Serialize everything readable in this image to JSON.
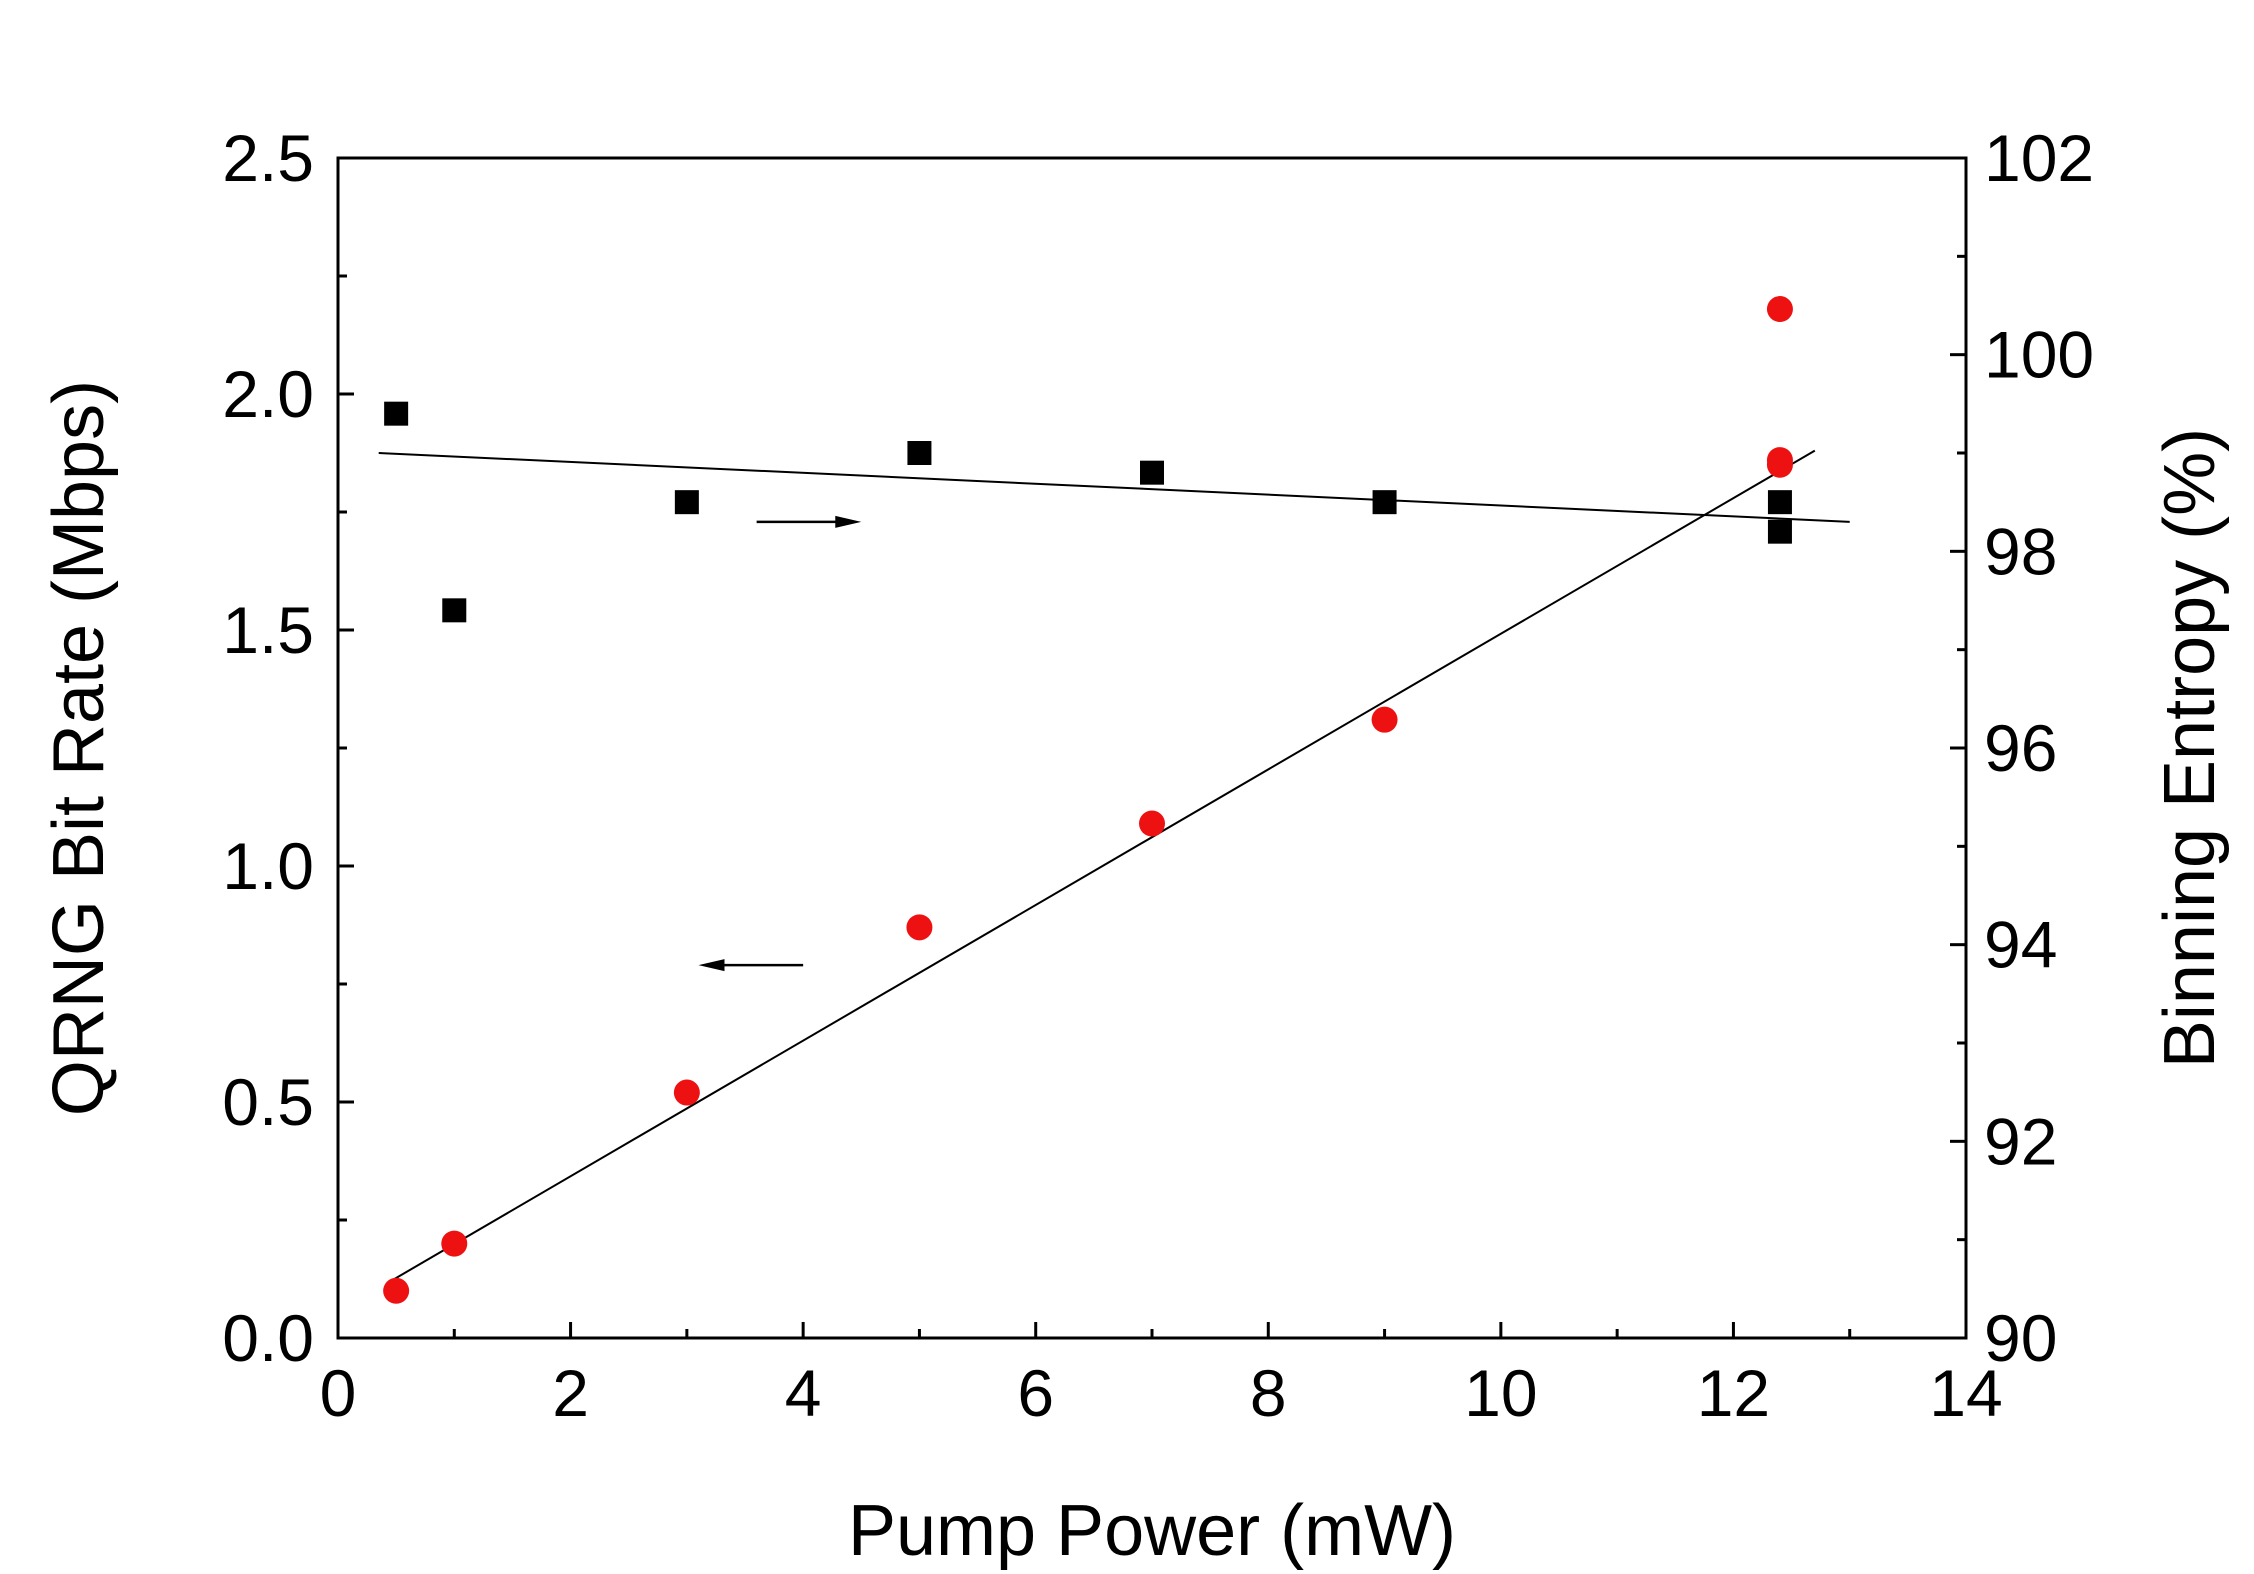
{
  "chart_data": {
    "type": "scatter",
    "title": "",
    "xlabel": "Pump Power (mW)",
    "ylabel": "QRNG Bit Rate (Mbps)",
    "y2label": "Binning Entropy (%)",
    "xlim": [
      0,
      14
    ],
    "ylim": [
      0,
      2.5
    ],
    "y2lim": [
      90,
      102
    ],
    "x_ticks": [
      "0",
      "2",
      "4",
      "6",
      "8",
      "10",
      "12",
      "14"
    ],
    "y_ticks": [
      "0.0",
      "0.5",
      "1.0",
      "1.5",
      "2.0",
      "2.5"
    ],
    "y2_ticks": [
      "90",
      "92",
      "94",
      "96",
      "98",
      "100",
      "102"
    ],
    "grid": false,
    "series": [
      {
        "name": "QRNG Bit Rate",
        "axis": "left",
        "marker": "circle",
        "color": "#ee1111",
        "x": [
          0.5,
          1,
          3,
          5,
          7,
          9,
          12.4,
          12.4,
          12.4
        ],
        "y": [
          0.1,
          0.2,
          0.52,
          0.87,
          1.09,
          1.31,
          2.18,
          1.86,
          1.85
        ]
      },
      {
        "name": "Binning Entropy",
        "axis": "right",
        "marker": "square",
        "color": "#000000",
        "x": [
          0.5,
          1,
          3,
          5,
          7,
          9,
          12.4,
          12.4
        ],
        "y": [
          99.4,
          97.4,
          98.5,
          99.0,
          98.8,
          98.5,
          98.5,
          98.2
        ]
      }
    ],
    "fits": [
      {
        "name": "Bit rate linear fit",
        "axis": "left",
        "x": [
          0.45,
          12.7
        ],
        "y": [
          0.12,
          1.88
        ]
      },
      {
        "name": "Entropy linear fit",
        "axis": "right",
        "x": [
          0.35,
          13.0
        ],
        "y": [
          99.0,
          98.3
        ]
      }
    ],
    "annotations": [
      {
        "name": "arrow-to-right-axis",
        "direction": "right",
        "axis": "right",
        "x_from": 3.6,
        "x_to": 4.5,
        "y": 98.3
      },
      {
        "name": "arrow-to-left-axis",
        "direction": "left",
        "axis": "left",
        "x_from": 4.0,
        "x_to": 3.1,
        "y": 0.79
      }
    ]
  }
}
